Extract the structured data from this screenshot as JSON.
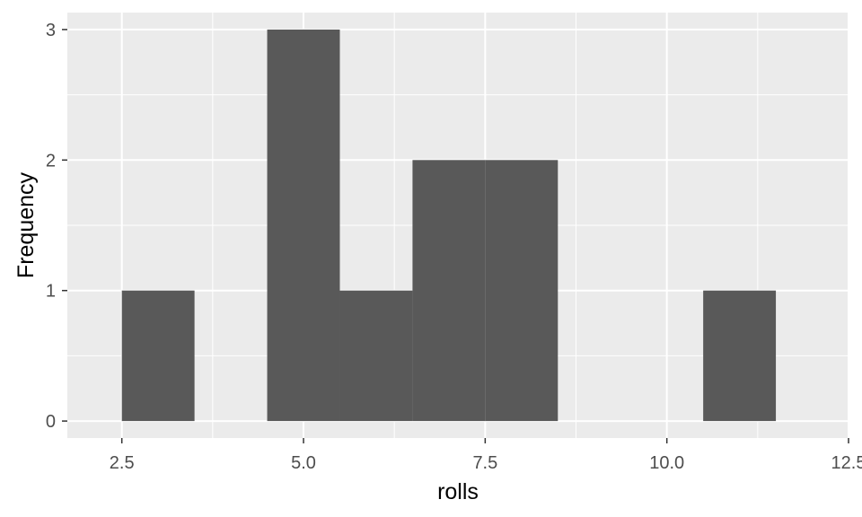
{
  "chart_data": {
    "type": "bar",
    "xlabel": "rolls",
    "ylabel": "Frequency",
    "xlim": [
      1.75,
      12.5
    ],
    "ylim": [
      -0.13,
      3.13
    ],
    "x_ticks": [
      2.5,
      5.0,
      7.5,
      10.0,
      12.5
    ],
    "x_tick_labels": [
      "2.5",
      "5.0",
      "7.5",
      "10.0",
      "12.5"
    ],
    "y_ticks": [
      0,
      1,
      2,
      3
    ],
    "y_tick_labels": [
      "0",
      "1",
      "2",
      "3"
    ],
    "bins": [
      {
        "x_start": 2.5,
        "x_end": 3.5,
        "count": 1
      },
      {
        "x_start": 3.5,
        "x_end": 4.5,
        "count": 0
      },
      {
        "x_start": 4.5,
        "x_end": 5.5,
        "count": 3
      },
      {
        "x_start": 5.5,
        "x_end": 6.5,
        "count": 1
      },
      {
        "x_start": 6.5,
        "x_end": 7.5,
        "count": 2
      },
      {
        "x_start": 7.5,
        "x_end": 8.5,
        "count": 2
      },
      {
        "x_start": 8.5,
        "x_end": 9.5,
        "count": 0
      },
      {
        "x_start": 9.5,
        "x_end": 10.5,
        "count": 0
      },
      {
        "x_start": 10.5,
        "x_end": 11.5,
        "count": 1
      }
    ],
    "grid": true,
    "legend": "none",
    "colors": {
      "panel_background": "#ebebeb",
      "grid_major": "#ffffff",
      "bar_fill": "#595959",
      "tick_color": "#333333"
    }
  }
}
